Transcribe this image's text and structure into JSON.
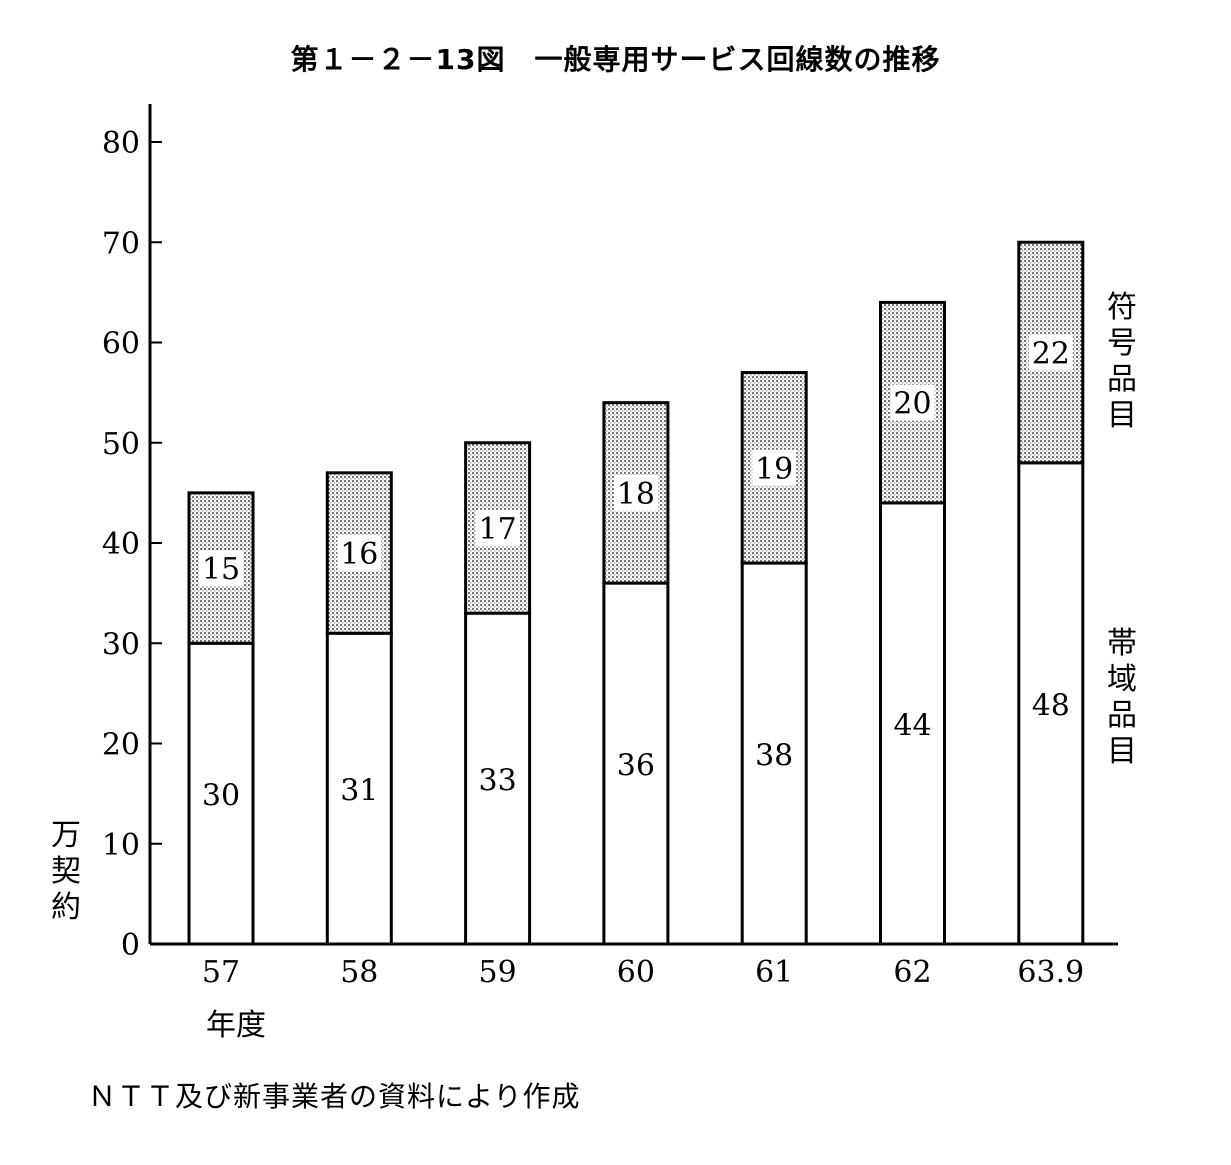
{
  "title": "第１－２－13図　一般専用サービス回線数の推移",
  "unit_label": "万契約",
  "x_unit_label": "年度",
  "source_note": "ＮＴＴ及び新事業者の資料により作成",
  "colors": {
    "stipple": "#9a9a9a",
    "bar_fill": "#ffffff",
    "stroke": "#000000"
  },
  "chart_data": {
    "type": "bar",
    "stacked": true,
    "title": "第１－２－13図　一般専用サービス回線数の推移",
    "ylabel": "万契約",
    "xlabel": "年度",
    "ylim": [
      0,
      80
    ],
    "yticks": [
      0,
      10,
      20,
      30,
      40,
      50,
      60,
      70,
      80
    ],
    "categories": [
      "57",
      "58",
      "59",
      "60",
      "61",
      "62",
      "63.9"
    ],
    "series": [
      {
        "name": "帯域品目",
        "values": [
          30,
          31,
          33,
          36,
          38,
          44,
          48
        ],
        "pattern": "plain"
      },
      {
        "name": "符号品目",
        "values": [
          15,
          16,
          17,
          18,
          19,
          20,
          22
        ],
        "pattern": "stipple"
      }
    ]
  }
}
